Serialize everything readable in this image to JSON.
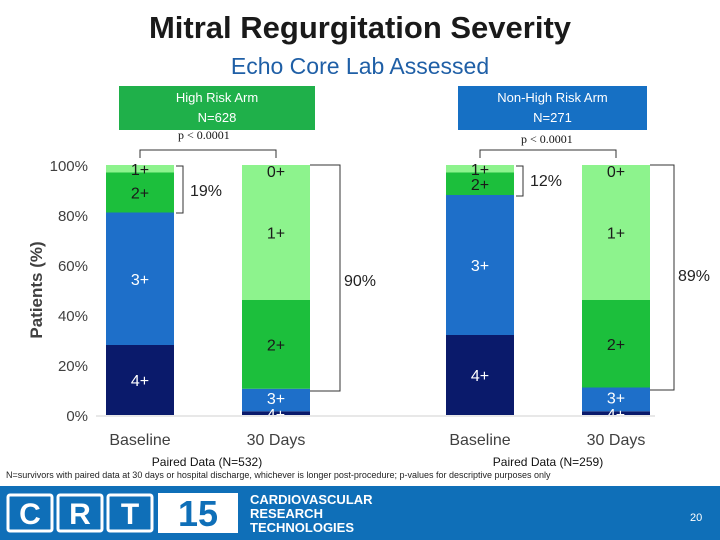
{
  "slide": {
    "title": "Mitral Regurgitation Severity",
    "subtitle": "Echo Core Lab Assessed",
    "footnote": "N=survivors with paired data at 30 days or hospital discharge, whichever is longer post-procedure; p-values for descriptive purposes only",
    "page_number": "20"
  },
  "arms": [
    {
      "name": "High Risk Arm",
      "n": "N=628",
      "p_value": "p < 0.0001",
      "color": "#1fb04a"
    },
    {
      "name": "Non-High Risk Arm",
      "n": "N=271",
      "p_value": "p < 0.0001",
      "color": "#1670c4"
    }
  ],
  "footer": {
    "logo_text": "CRT15",
    "org_lines": [
      "CARDIOVASCULAR",
      "RESEARCH",
      "TECHNOLOGIES"
    ]
  },
  "chart_data": {
    "type": "bar",
    "stacked": true,
    "ylabel": "Patients (%)",
    "ylim": [
      0,
      100
    ],
    "yticks": [
      "0%",
      "20%",
      "40%",
      "60%",
      "80%",
      "100%"
    ],
    "categories": [
      "Baseline",
      "30 Days",
      "Baseline",
      "30 Days"
    ],
    "group_labels": [
      "Paired Data (N=532)",
      "Paired Data (N=259)"
    ],
    "series": [
      {
        "name": "4+",
        "color": "#0a1a6b",
        "values": [
          28,
          1.5,
          32,
          1.5
        ]
      },
      {
        "name": "3+",
        "color": "#1e6fc9",
        "values": [
          53,
          9,
          56,
          9.5
        ]
      },
      {
        "name": "2+",
        "color": "#1cbf3c",
        "values": [
          16,
          35.5,
          9,
          35
        ]
      },
      {
        "name": "1+",
        "color": "#8df38d",
        "values": [
          3,
          54,
          3,
          54
        ]
      },
      {
        "name": "0+",
        "color": "#8df38d",
        "values": [
          0,
          0,
          0,
          0
        ]
      }
    ],
    "segment_labels": [
      [
        "4+",
        "3+",
        "2+",
        "1+"
      ],
      [
        "4+",
        "3+",
        "2+",
        "1+",
        "0+"
      ],
      [
        "4+",
        "3+",
        "2+",
        "1+"
      ],
      [
        "4+",
        "3+",
        "2+",
        "1+",
        "0+"
      ]
    ],
    "annotations": [
      {
        "text": "19%"
      },
      {
        "text": "90%"
      },
      {
        "text": "12%"
      },
      {
        "text": "89%"
      }
    ]
  }
}
